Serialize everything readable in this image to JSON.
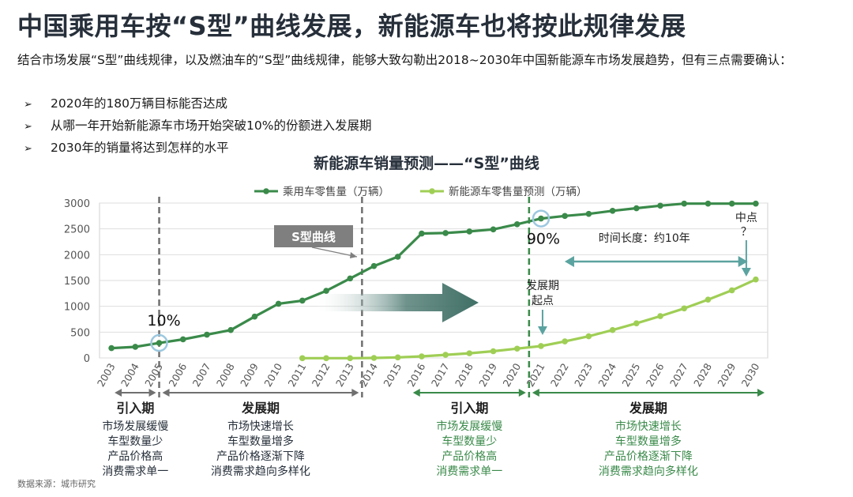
{
  "title": "中国乘用车按“S型”曲线发展，新能源车也将按此规律发展",
  "intro": "结合市场发展“S型”曲线规律，以及燃油车的“S型”曲线规律，能够大致勾勒出2018~2030年中国新能源车市场发展趋势，但有三点需要确认：",
  "bullets": [
    "2020年的180万辆目标能否达成",
    "从哪一年开始新能源车市场开始突破10%的份额进入发展期",
    "2030年的销量将达到怎样的水平"
  ],
  "bullet_mark": "➢",
  "chart_title": "新能源车销量预测——“S型”曲线",
  "source": "数据来源：城市研究",
  "colors": {
    "dark_green": "#3a8a4a",
    "light_green": "#9fce55",
    "dash_gray": "#707070",
    "arrow_teal": "#3f6f66",
    "ring": "#9cc8e0"
  },
  "chart_data": {
    "type": "line",
    "x": [
      2003,
      2004,
      2005,
      2006,
      2007,
      2008,
      2009,
      2010,
      2011,
      2012,
      2013,
      2014,
      2015,
      2016,
      2017,
      2018,
      2019,
      2020,
      2021,
      2022,
      2023,
      2024,
      2025,
      2026,
      2027,
      2028,
      2029,
      2030
    ],
    "series": [
      {
        "name": "乘用车零售量（万辆）",
        "color": "#3a8a4a",
        "values": [
          190,
          215,
          290,
          360,
          450,
          540,
          800,
          1050,
          1110,
          1300,
          1540,
          1780,
          1960,
          2410,
          2420,
          2450,
          2490,
          2590,
          2700,
          2750,
          2790,
          2850,
          2900,
          2950,
          2990,
          2990,
          2990,
          2990
        ]
      },
      {
        "name": "新能源车零售量预测（万辆）",
        "color": "#9fce55",
        "values": [
          null,
          null,
          null,
          null,
          null,
          null,
          null,
          null,
          -5,
          -5,
          -5,
          0,
          10,
          30,
          60,
          90,
          130,
          180,
          230,
          320,
          420,
          540,
          670,
          810,
          960,
          1130,
          1310,
          1520
        ]
      }
    ],
    "yticks": [
      0,
      500,
      1000,
      1500,
      2000,
      2500,
      3000
    ],
    "ylim": [
      0,
      3000
    ],
    "annotations": {
      "pct10": "10%",
      "pct90": "90%",
      "s_curve_label": "S型曲线",
      "midpoint": "中点\n？",
      "dev_start": "发展期\n起点",
      "time_length": "时间长度：约10年"
    },
    "dividers": [
      2005,
      2013.5,
      2020.5
    ],
    "phases": [
      {
        "label": "引入期",
        "lines": [
          "市场发展缓慢",
          "车型数量少",
          "产品价格高",
          "消费需求单一"
        ],
        "range": [
          2003,
          2005
        ],
        "color": "#262f3a",
        "arrow": "#707070"
      },
      {
        "label": "发展期",
        "lines": [
          "市场快速增长",
          "车型数量增多",
          "产品价格逐渐下降",
          "消费需求趋向多样化"
        ],
        "range": [
          2005,
          2013.5
        ],
        "color": "#262f3a",
        "arrow": "#707070"
      },
      {
        "label": "引入期",
        "lines": [
          "市场发展缓慢",
          "车型数量少",
          "产品价格高",
          "消费需求单一"
        ],
        "range": [
          2015.5,
          2020.5
        ],
        "color": "#3a8a4a",
        "arrow": "#3a8a4a"
      },
      {
        "label": "发展期",
        "lines": [
          "市场快速增长",
          "车型数量增多",
          "产品价格逐渐下降",
          "消费需求趋向多样化"
        ],
        "range": [
          2020.5,
          2030.5
        ],
        "color": "#3a8a4a",
        "arrow": "#3a8a4a"
      }
    ]
  }
}
